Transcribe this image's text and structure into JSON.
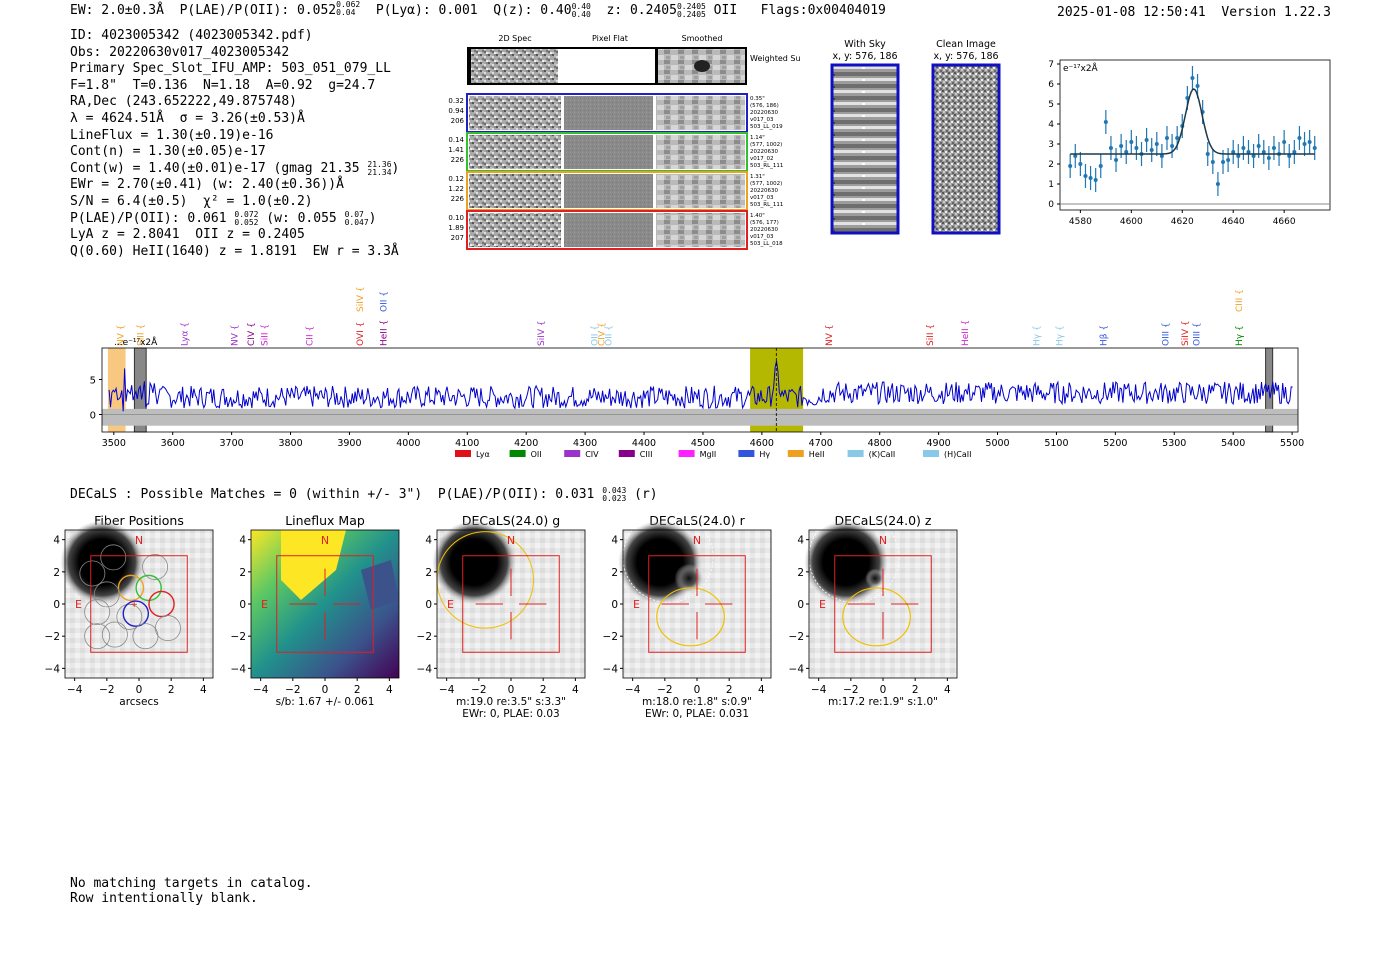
{
  "header": {
    "ew": "EW: 2.0±0.3Å",
    "plae": "P(LAE)/P(OII): 0.052",
    "plae_hi": "0.062",
    "plae_lo": "0.04",
    "plya": "P(Lyα): 0.001",
    "qz": "Q(z): 0.40",
    "qz_hi": "0.40",
    "qz_lo": "0.40",
    "z": "z: 0.2405",
    "z_hi": "0.2405",
    "z_lo": "0.2405",
    "z_label": "OII",
    "flags": "Flags:0x00404019",
    "timestamp": "2025-01-08 12:50:41",
    "version": "Version 1.22.3"
  },
  "info": {
    "id": "ID: 4023005342 (4023005342.pdf)",
    "obs": "Obs: 20220630v017_4023005342",
    "primary": "Primary Spec_Slot_IFU_AMP: 503_051_079_LL",
    "fwhm": "F=1.8\"  T=0.136  N=1.18  A=0.92  g=24.7",
    "radec": "RA,Dec (243.652222,49.875748)",
    "lambda": "λ = 4624.51Å  σ = 3.26(±0.53)Å",
    "lineflux": "LineFlux = 1.30(±0.19)e-16",
    "contn": "Cont(n) = 1.30(±0.05)e-17",
    "contw": "Cont(w) = 1.40(±0.01)e-17 (gmag 21.35",
    "contw_hi": "21.36",
    "contw_lo": "21.34",
    "contw_close": ")",
    "ewr": "EWr = 2.70(±0.41) (w: 2.40(±0.36))Å",
    "sn": "S/N = 6.4(±0.5)  χ² = 1.0(±0.2)",
    "plae2": "P(LAE)/P(OII): 0.061",
    "plae2_hi": "0.072",
    "plae2_lo": "0.052",
    "plae2_w": " (w: 0.055",
    "plae2_w_hi": "0.07",
    "plae2_w_lo": "0.047",
    "plae2_close": ")",
    "lya": "LyA z = 2.8041  OII z = 0.2405",
    "heii": "Q(0.60) HeII(1640) z = 1.8191  EW r = 3.3Å"
  },
  "cutouts": {
    "col_2d": "2D Spec",
    "col_flat": "Pixel Flat",
    "col_smooth": "Smoothed",
    "weighted_sum": "Weighted Sum",
    "rows": [
      {
        "left": [
          "0.32",
          "0.94",
          "206"
        ],
        "right": [
          "0.35\"",
          "(576, 186)",
          "20220630",
          "v017_03",
          "503_LL_019"
        ],
        "color": "#2020c8"
      },
      {
        "left": [
          "0.14",
          "1.41",
          "226"
        ],
        "right": [
          "1.14\"",
          "(577, 1002)",
          "20220630",
          "v017_02",
          "503_RL_111"
        ],
        "color": "#30c030"
      },
      {
        "left": [
          "0.12",
          "1.22",
          "226"
        ],
        "right": [
          "1.31\"",
          "(577, 1002)",
          "20220630",
          "v017_03",
          "503_RL_111"
        ],
        "color": "#f0a020"
      },
      {
        "left": [
          "0.10",
          "1.89",
          "207"
        ],
        "right": [
          "1.40\"",
          "(576, 177)",
          "20220630",
          "v017_03",
          "503_LL_018"
        ],
        "color": "#e02020"
      }
    ]
  },
  "sky": {
    "with_sky_title": "With Sky",
    "with_sky_coords": "x, y: 576, 186",
    "clean_title": "Clean Image",
    "clean_coords": "x, y: 576, 186"
  },
  "fit_plot": {
    "type": "scatter",
    "units_label": "e⁻¹⁷x2Å",
    "xlim": [
      4572,
      4678
    ],
    "ylim": [
      -0.3,
      7.2
    ],
    "x_ticks": [
      4580,
      4600,
      4620,
      4640,
      4660
    ],
    "y_ticks": [
      0,
      1,
      2,
      3,
      4,
      5,
      6,
      7
    ],
    "continuum": 2.5,
    "line_center": 4624.51,
    "line_sigma": 3.26,
    "line_peak": 5.75,
    "fit_range": [
      4576,
      4672
    ],
    "x": [
      4576,
      4578,
      4580,
      4582,
      4584,
      4586,
      4588,
      4590,
      4592,
      4594,
      4596,
      4598,
      4600,
      4602,
      4604,
      4606,
      4608,
      4610,
      4612,
      4614,
      4616,
      4618,
      4620,
      4622,
      4624,
      4626,
      4628,
      4630,
      4632,
      4634,
      4636,
      4638,
      4640,
      4642,
      4644,
      4646,
      4648,
      4650,
      4652,
      4654,
      4656,
      4658,
      4660,
      4662,
      4664,
      4666,
      4668,
      4670,
      4672
    ],
    "y": [
      1.9,
      2.4,
      2.0,
      1.4,
      1.3,
      1.2,
      1.9,
      4.1,
      2.8,
      2.2,
      2.9,
      2.6,
      3.1,
      2.8,
      2.5,
      3.2,
      2.7,
      3.0,
      2.4,
      3.3,
      2.9,
      3.3,
      3.9,
      5.3,
      6.3,
      5.9,
      4.6,
      2.5,
      2.1,
      1.0,
      2.1,
      2.2,
      2.6,
      2.4,
      2.8,
      2.6,
      2.4,
      2.9,
      2.6,
      2.3,
      2.8,
      2.5,
      3.1,
      2.4,
      2.6,
      3.3,
      3.0,
      3.1,
      2.8
    ],
    "err": [
      0.6,
      0.6,
      0.6,
      0.6,
      0.6,
      0.6,
      0.6,
      0.6,
      0.6,
      0.6,
      0.6,
      0.6,
      0.6,
      0.6,
      0.6,
      0.6,
      0.6,
      0.6,
      0.6,
      0.6,
      0.6,
      0.6,
      0.6,
      0.6,
      0.6,
      0.6,
      0.6,
      0.6,
      0.6,
      0.6,
      0.6,
      0.6,
      0.6,
      0.6,
      0.6,
      0.6,
      0.6,
      0.6,
      0.6,
      0.6,
      0.6,
      0.6,
      0.6,
      0.6,
      0.6,
      0.6,
      0.6,
      0.6,
      0.6
    ]
  },
  "spectrum": {
    "type": "line",
    "units_label": "e⁻¹⁷x2Å",
    "xlim": [
      3480,
      5510
    ],
    "ylim": [
      -2.5,
      9.5
    ],
    "x_ticks": [
      3500,
      3600,
      3700,
      3800,
      3900,
      4000,
      4100,
      4200,
      4300,
      4400,
      4500,
      4600,
      4700,
      4800,
      4900,
      5000,
      5100,
      5200,
      5300,
      5400,
      5500
    ],
    "y_ticks": [
      0,
      5
    ],
    "continuum": 2.5,
    "line_center": 4624.51,
    "highlight_band": [
      4580,
      4670
    ],
    "orange_band": [
      3490,
      3520
    ],
    "gray_bands": [
      [
        3535,
        3555
      ],
      [
        5455,
        5467
      ]
    ],
    "line_labels": [
      {
        "name": "NV",
        "x": 3511,
        "color": "#f0a020",
        "row": 2
      },
      {
        "name": "SiII",
        "x": 3545,
        "color": "#f0a020",
        "row": 2
      },
      {
        "name": "Lyα",
        "x": 3620,
        "color": "#9933cc",
        "row": 2
      },
      {
        "name": "NV",
        "x": 3705,
        "color": "#9933cc",
        "row": 2
      },
      {
        "name": "CIV",
        "x": 3733,
        "color": "#880088",
        "row": 2
      },
      {
        "name": "SiII",
        "x": 3756,
        "color": "#cc22cc",
        "row": 2
      },
      {
        "name": "CII",
        "x": 3832,
        "color": "#cc22cc",
        "row": 2
      },
      {
        "name": "SiIV",
        "x": 3918,
        "color": "#f0a020",
        "row": 0
      },
      {
        "name": "OVI",
        "x": 3918,
        "color": "#e02020",
        "row": 2
      },
      {
        "name": "OII",
        "x": 3958,
        "color": "#3355dd",
        "row": 0
      },
      {
        "name": "HeII",
        "x": 3958,
        "color": "#880088",
        "row": 2
      },
      {
        "name": "SiIV",
        "x": 4225,
        "color": "#9933cc",
        "row": 2
      },
      {
        "name": "OII",
        "x": 4316,
        "color": "#88c8e8",
        "row": 2
      },
      {
        "name": "CIV",
        "x": 4328,
        "color": "#f0a020",
        "row": 2
      },
      {
        "name": "OII",
        "x": 4340,
        "color": "#88c8e8",
        "row": 2
      },
      {
        "name": "NV",
        "x": 4714,
        "color": "#e02020",
        "row": 2
      },
      {
        "name": "SiII",
        "x": 4885,
        "color": "#e02020",
        "row": 2
      },
      {
        "name": "HeII",
        "x": 4945,
        "color": "#cc22cc",
        "row": 2
      },
      {
        "name": "Hγ",
        "x": 5066,
        "color": "#88c8e8",
        "row": 2
      },
      {
        "name": "Hγ",
        "x": 5105,
        "color": "#88c8e8",
        "row": 2
      },
      {
        "name": "Hβ",
        "x": 5180,
        "color": "#3355dd",
        "row": 2
      },
      {
        "name": "OIII",
        "x": 5285,
        "color": "#3355dd",
        "row": 2
      },
      {
        "name": "SiIV",
        "x": 5318,
        "color": "#e02020",
        "row": 2
      },
      {
        "name": "OIII",
        "x": 5338,
        "color": "#3355dd",
        "row": 2
      },
      {
        "name": "CIII",
        "x": 5410,
        "color": "#f0a020",
        "row": 0
      },
      {
        "name": "Hγ",
        "x": 5410,
        "color": "#008800",
        "row": 2
      }
    ],
    "legend": [
      {
        "name": "Lyα",
        "color": "#e0101a"
      },
      {
        "name": "OII",
        "color": "#008800"
      },
      {
        "name": "CIV",
        "color": "#9933cc"
      },
      {
        "name": "CIII",
        "color": "#880088"
      },
      {
        "name": "MgII",
        "color": "#ff22ff"
      },
      {
        "name": "Hγ",
        "color": "#3355dd"
      },
      {
        "name": "HeII",
        "color": "#f0a020"
      },
      {
        "name": "(K)CaII",
        "color": "#88c8e8"
      },
      {
        "name": "(H)CaII",
        "color": "#88c8e8"
      }
    ]
  },
  "decals": {
    "summary": "DECaLS : Possible Matches = 0 (within +/- 3\")  P(LAE)/P(OII): 0.031",
    "summary_hi": "0.043",
    "summary_lo": "0.023",
    "summary_band": "(r)",
    "axis_ticks": [
      "4",
      "2",
      "0",
      "−2",
      "−4"
    ],
    "x_ticks": [
      "−4",
      "−2",
      "0",
      "2",
      "4"
    ],
    "panels": [
      {
        "title": "Fiber Positions",
        "caption": [
          "arcsecs"
        ],
        "kind": "fiber"
      },
      {
        "title": "Lineflux Map",
        "caption": [
          "s/b: 1.67 +/- 0.061"
        ],
        "kind": "lineflux"
      },
      {
        "title": "DECaLS(24.0) g",
        "caption": [
          "m:19.0  re:3.5\"  s:3.3\"",
          "EWr: 0, PLAE: 0.03"
        ],
        "kind": "g"
      },
      {
        "title": "DECaLS(24.0) r",
        "caption": [
          "m:18.0  re:1.8\"  s:0.9\"",
          "EWr: 0, PLAE: 0.031"
        ],
        "kind": "r"
      },
      {
        "title": "DECaLS(24.0) z",
        "caption": [
          "m:17.2  re:1.9\"  s:1.0\""
        ],
        "kind": "z"
      }
    ],
    "compass_n": "N",
    "compass_e": "E"
  },
  "footer": {
    "line1": "No matching targets in catalog.",
    "line2": "Row intentionally blank."
  }
}
